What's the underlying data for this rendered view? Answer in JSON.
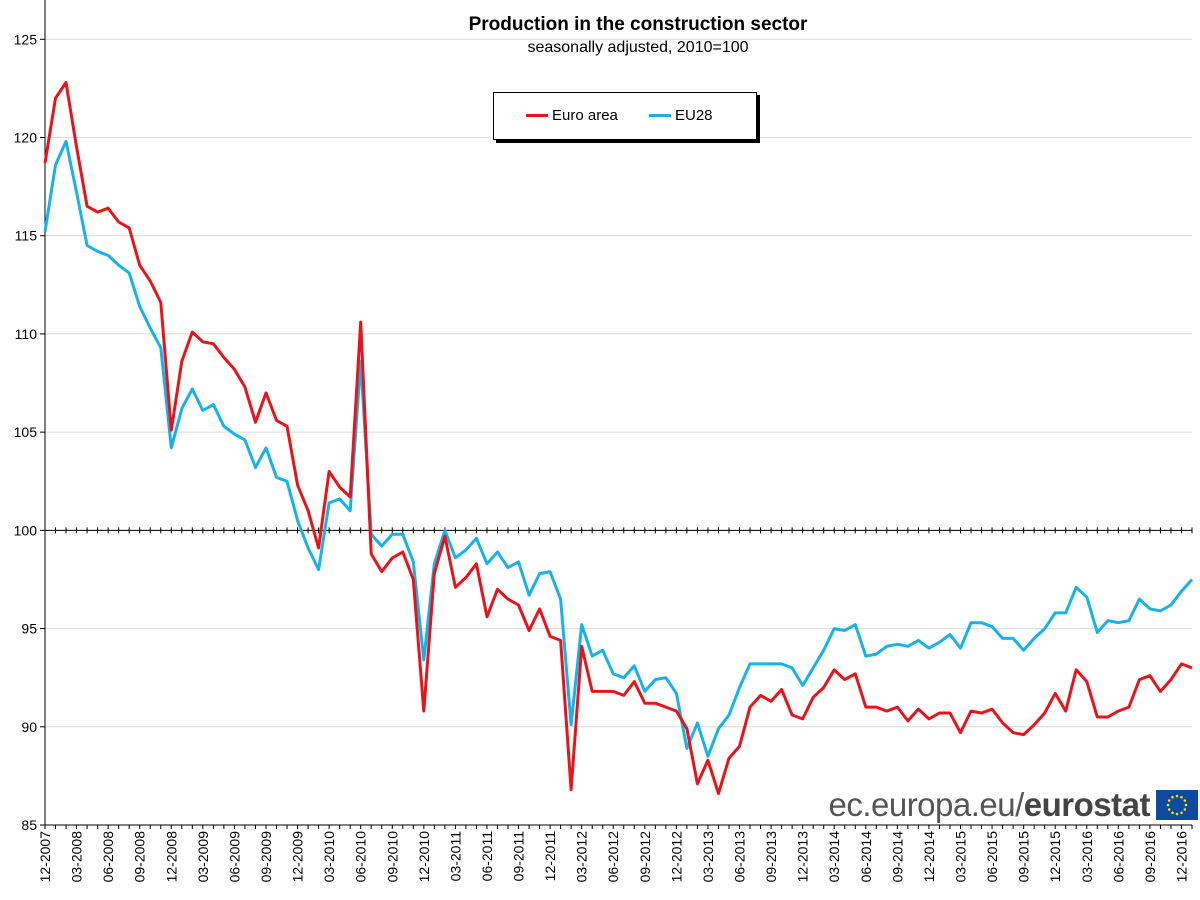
{
  "chart_data": {
    "type": "line",
    "title": "Production in the construction sector",
    "subtitle": "seasonally adjusted, 2010=100",
    "ylim": [
      85,
      127
    ],
    "y_ticks": [
      85,
      90,
      95,
      100,
      105,
      110,
      115,
      120,
      125
    ],
    "x_tick_labels": [
      "12-2007",
      "03-2008",
      "06-2008",
      "09-2008",
      "12-2008",
      "03-2009",
      "06-2009",
      "09-2009",
      "12-2009",
      "03-2010",
      "06-2010",
      "09-2010",
      "12-2010",
      "03-2011",
      "06-2011",
      "09-2011",
      "12-2011",
      "03-2012",
      "06-2012",
      "09-2012",
      "12-2012",
      "03-2013",
      "06-2013",
      "09-2013",
      "12-2013",
      "03-2014",
      "06-2014",
      "09-2014",
      "12-2014",
      "03-2015",
      "06-2015",
      "09-2015",
      "12-2015",
      "03-2016",
      "06-2016",
      "09-2016",
      "12-2016"
    ],
    "x_start": "12-2007",
    "x_end": "12-2016",
    "legend_position": "top-center",
    "series": [
      {
        "name": "Euro area",
        "color": "#e8141b",
        "values": [
          118.7,
          122.0,
          122.8,
          119.5,
          116.5,
          116.2,
          116.4,
          115.7,
          115.4,
          113.5,
          112.7,
          111.6,
          105.1,
          108.6,
          110.1,
          109.6,
          109.5,
          108.8,
          108.2,
          107.3,
          105.5,
          107.0,
          105.6,
          105.3,
          102.3,
          101.0,
          99.1,
          103.0,
          102.2,
          101.7,
          110.6,
          98.8,
          97.9,
          98.6,
          98.9,
          97.5,
          90.8,
          97.8,
          99.7,
          97.1,
          97.6,
          98.3,
          95.6,
          97.0,
          96.5,
          96.2,
          94.9,
          96.0,
          94.6,
          94.4,
          86.8,
          94.1,
          91.8,
          91.8,
          91.8,
          91.6,
          92.3,
          91.2,
          91.2,
          91.0,
          90.8,
          89.9,
          87.1,
          88.3,
          86.6,
          88.4,
          89.0,
          91.0,
          91.6,
          91.3,
          91.9,
          90.6,
          90.4,
          91.5,
          92.0,
          92.9,
          92.4,
          92.7,
          91.0,
          91.0,
          90.8,
          91.0,
          90.3,
          90.9,
          90.4,
          90.7,
          90.7,
          89.7,
          90.8,
          90.7,
          90.9,
          90.2,
          89.7,
          89.6,
          90.1,
          90.7,
          91.7,
          90.8,
          92.9,
          92.3,
          90.5,
          90.5,
          90.8,
          91.0,
          92.4,
          92.6,
          91.8,
          92.4,
          93.2,
          93.0
        ]
      },
      {
        "name": "EU28",
        "color": "#17b3e8",
        "values": [
          115.2,
          118.6,
          119.8,
          117.2,
          114.5,
          114.2,
          114.0,
          113.5,
          113.1,
          111.4,
          110.3,
          109.3,
          104.2,
          106.2,
          107.2,
          106.1,
          106.4,
          105.3,
          104.9,
          104.6,
          103.2,
          104.2,
          102.7,
          102.5,
          100.5,
          99.1,
          98.0,
          101.4,
          101.6,
          101.0,
          108.6,
          99.8,
          99.2,
          99.8,
          99.8,
          98.4,
          93.4,
          98.3,
          100.0,
          98.6,
          99.0,
          99.6,
          98.3,
          98.9,
          98.1,
          98.4,
          96.7,
          97.8,
          97.9,
          96.5,
          90.1,
          95.2,
          93.6,
          93.9,
          92.7,
          92.5,
          93.1,
          91.8,
          92.4,
          92.5,
          91.7,
          88.9,
          90.2,
          88.5,
          89.9,
          90.6,
          92.0,
          93.2,
          93.2,
          93.2,
          93.2,
          93.0,
          92.1,
          93.0,
          93.9,
          95.0,
          94.9,
          95.2,
          93.6,
          93.7,
          94.1,
          94.2,
          94.1,
          94.4,
          94.0,
          94.3,
          94.7,
          94.0,
          95.3,
          95.3,
          95.1,
          94.5,
          94.5,
          93.9,
          94.5,
          95.0,
          95.8,
          95.8,
          97.1,
          96.6,
          94.8,
          95.4,
          95.3,
          95.4,
          96.5,
          96.0,
          95.9,
          96.2,
          96.9,
          97.5
        ]
      }
    ]
  },
  "watermark": {
    "text_regular": "ec.europa.eu/",
    "text_bold": "eurostat"
  }
}
